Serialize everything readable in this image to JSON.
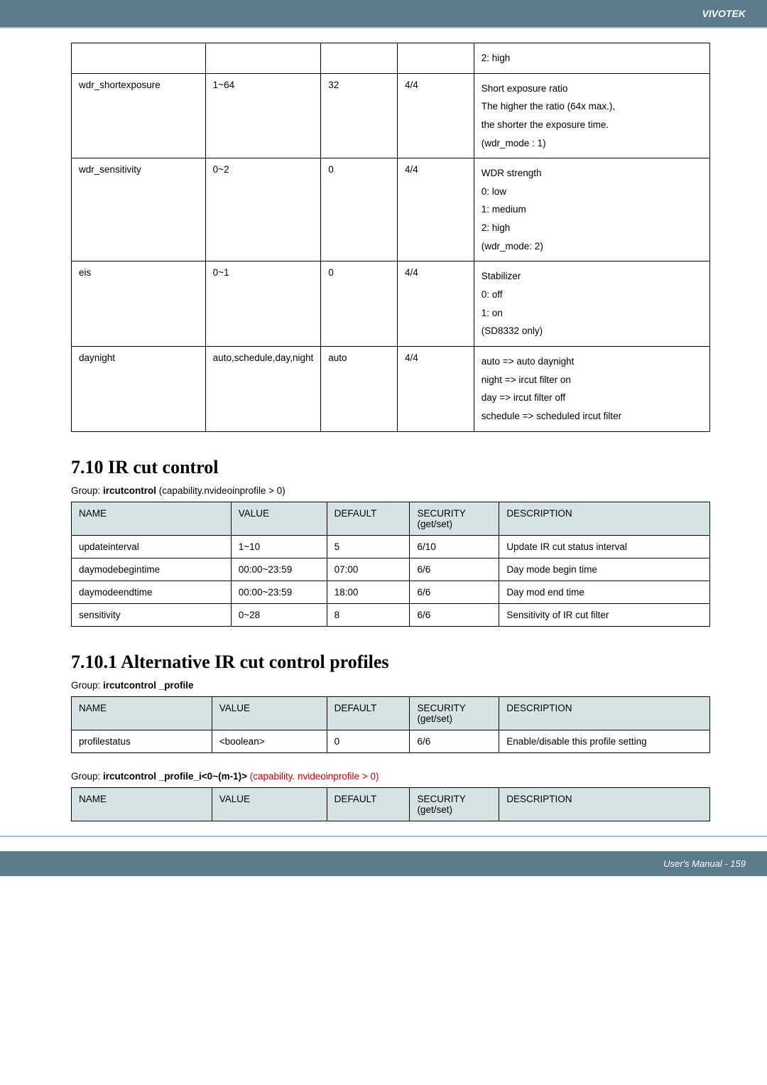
{
  "header": {
    "brand": "VIVOTEK"
  },
  "colors": {
    "header_bg": "#5b7a8a",
    "header_accent": "#a0c4d4",
    "thead_bg": "#d6e3e3",
    "red_text": "#c00"
  },
  "table1": {
    "rows": [
      {
        "c1": "",
        "c2": "",
        "c3": "",
        "c4": "",
        "desc": [
          "2: high"
        ]
      },
      {
        "c1": "wdr_shortexposure",
        "c2": "1~64",
        "c3": "32",
        "c4": "4/4",
        "desc": [
          "Short exposure ratio",
          "The higher the ratio (64x max.),",
          "the shorter the exposure time.",
          "(wdr_mode : 1)"
        ]
      },
      {
        "c1": "wdr_sensitivity",
        "c2": "0~2",
        "c3": "0",
        "c4": "4/4",
        "desc": [
          "WDR strength",
          "0: low",
          "1: medium",
          "2: high",
          "(wdr_mode: 2)"
        ]
      },
      {
        "c1": "eis",
        "c2": "0~1",
        "c3": "0",
        "c4": "4/4",
        "desc": [
          "Stabilizer",
          "0: off",
          "1: on",
          "(SD8332 only)"
        ]
      },
      {
        "c1": "daynight",
        "c2": "auto,schedule,day,night",
        "c3": "auto",
        "c4": "4/4",
        "desc": [
          "auto => auto daynight",
          "night => ircut filter on",
          "day => ircut filter off",
          "schedule => scheduled ircut filter"
        ]
      }
    ],
    "col_widths": [
      "21%",
      "18%",
      "12%",
      "12%",
      "37%"
    ]
  },
  "section2": {
    "heading": "7.10 IR cut control",
    "group_prefix": "Group: ",
    "group_bold": "ircutcontrol",
    "group_suffix": " (capability.nvideoinprofile > 0)",
    "headers": [
      "NAME",
      "VALUE",
      "DEFAULT",
      "SECURITY (get/set)",
      "DESCRIPTION"
    ],
    "rows": [
      [
        "updateinterval",
        "1~10",
        "5",
        "6/10",
        "Update IR cut status interval"
      ],
      [
        "daymodebegintime",
        "00:00~23:59",
        "07:00",
        "6/6",
        "Day mode begin time"
      ],
      [
        "daymodeendtime",
        "00:00~23:59",
        "18:00",
        "6/6",
        "Day mod end time"
      ],
      [
        "sensitivity",
        "0~28",
        "8",
        "6/6",
        "Sensitivity of IR cut filter"
      ]
    ],
    "col_widths": [
      "25%",
      "15%",
      "13%",
      "14%",
      "33%"
    ]
  },
  "section3": {
    "heading": "7.10.1 Alternative IR cut control profiles",
    "group1_prefix": "Group: ",
    "group1_bold": "ircutcontrol _profile",
    "headers": [
      "NAME",
      "VALUE",
      "DEFAULT",
      "SECURITY (get/set)",
      "DESCRIPTION"
    ],
    "rows1": [
      [
        "profilestatus",
        "<boolean>",
        "0",
        "6/6",
        "Enable/disable this profile setting"
      ]
    ],
    "group2_prefix": "Group: ",
    "group2_bold": "ircutcontrol _profile_i<0~(m-1)>",
    "group2_red": " (capability. nvideoinprofile > 0)",
    "rows2": [],
    "col_widths": [
      "22%",
      "18%",
      "13%",
      "14%",
      "33%"
    ]
  },
  "footer": {
    "text": "User's Manual - 159"
  }
}
